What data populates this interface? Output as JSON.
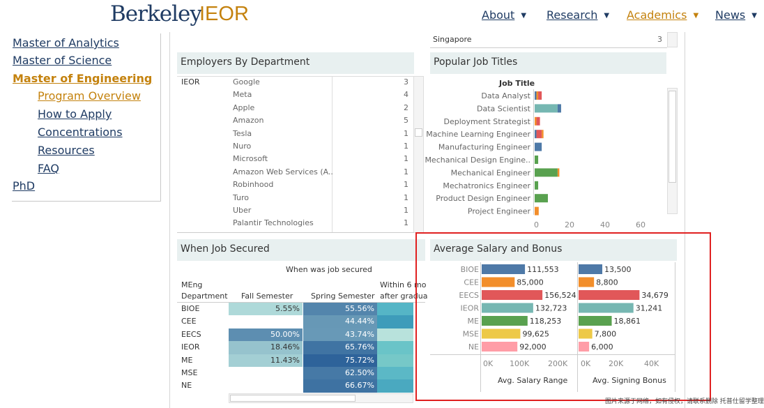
{
  "header": {
    "logo_main": "Berkeley",
    "logo_sub": "IEOR",
    "nav": [
      {
        "label": "About"
      },
      {
        "label": "Research"
      },
      {
        "label": "Academics"
      },
      {
        "label": "News"
      }
    ]
  },
  "sidebar": {
    "items": [
      "Master of Analytics",
      "Master of Science",
      "Master of Engineering"
    ],
    "subitems": [
      "Program Overview",
      "How to Apply",
      "Concentrations",
      "Resources",
      "FAQ"
    ],
    "phd": "PhD"
  },
  "top_fragment": {
    "label": "Singapore",
    "value": "3"
  },
  "employers": {
    "title": "Employers By Department",
    "dept": "IEOR",
    "rows": [
      [
        "Google",
        "3"
      ],
      [
        "Meta",
        "4"
      ],
      [
        "Apple",
        "2"
      ],
      [
        "Amazon",
        "5"
      ],
      [
        "Tesla",
        "1"
      ],
      [
        "Nuro",
        "1"
      ],
      [
        "Microsoft",
        "1"
      ],
      [
        "Amazon Web Services (A..",
        "1"
      ],
      [
        "Robinhood",
        "1"
      ],
      [
        "Turo",
        "1"
      ],
      [
        "Uber",
        "1"
      ],
      [
        "Palantir Technologies",
        "1"
      ]
    ]
  },
  "jobs": {
    "title": "Popular Job Titles",
    "header": "Job Title",
    "ticks": [
      "0",
      "20",
      "40",
      "60"
    ],
    "labels": [
      "Data Analyst",
      "Data Scientist",
      "Deployment Strategist",
      "Machine Learning Engineer",
      "Manufacturing Engineer",
      "Mechanical Design Engine..",
      "Mechanical Engineer",
      "Mechatronics Engineer",
      "Product Design Engineer",
      "Project Engineer"
    ]
  },
  "secured": {
    "title": "When Job Secured",
    "subtitle": "When was job secured",
    "col0a": "MEng",
    "col0b": "Department",
    "col1": "Fall Semester",
    "col2": "Spring Semester",
    "col3a": "Within 6 mo",
    "col3b": "after gradua",
    "rows": [
      [
        "BIOE",
        "5.55%",
        "55.56%"
      ],
      [
        "CEE",
        "",
        "44.44%"
      ],
      [
        "EECS",
        "50.00%",
        "43.74%"
      ],
      [
        "IEOR",
        "18.46%",
        "65.76%"
      ],
      [
        "ME",
        "11.43%",
        "75.72%"
      ],
      [
        "MSE",
        "",
        "62.50%"
      ],
      [
        "NE",
        "",
        "66.67%"
      ]
    ]
  },
  "chart_data": {
    "type": "bar",
    "title": "Average Salary and Bonus",
    "categories": [
      "BIOE",
      "CEE",
      "EECS",
      "IEOR",
      "ME",
      "MSE",
      "NE"
    ],
    "series": [
      {
        "name": "Avg. Salary Range",
        "values": [
          111553,
          85000,
          156524,
          132723,
          118253,
          99625,
          92000
        ],
        "labels": [
          "111,553",
          "85,000",
          "156,524",
          "132,723",
          "118,253",
          "99,625",
          "92,000"
        ],
        "ticks": [
          "0K",
          "100K",
          "200K"
        ],
        "xlim": [
          0,
          230000
        ]
      },
      {
        "name": "Avg. Signing Bonus",
        "values": [
          13500,
          8800,
          34679,
          31241,
          18861,
          7800,
          6000
        ],
        "labels": [
          "13,500",
          "8,800",
          "34,679",
          "31,241",
          "18,861",
          "7,800",
          "6,000"
        ],
        "ticks": [
          "0K",
          "20K",
          "40K"
        ],
        "xlim": [
          0,
          50000
        ]
      }
    ],
    "colors": [
      "#4e79a7",
      "#f28e2b",
      "#e15759",
      "#76b7b2",
      "#59a14f",
      "#edc948",
      "#ff9da7"
    ]
  },
  "watermark": "图片来源于网络，如有侵权，请联系删除 托普仕留学整理"
}
